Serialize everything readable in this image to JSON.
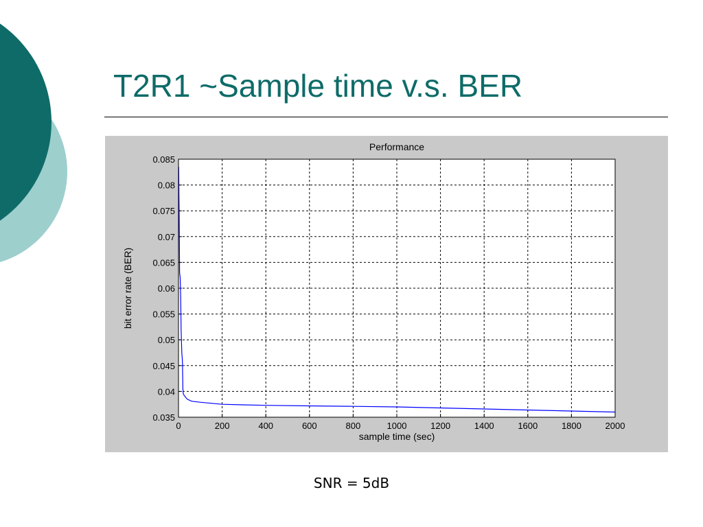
{
  "slide": {
    "title": "T2R1 ~Sample time v.s. BER",
    "caption": "SNR = 5dB"
  },
  "colors": {
    "title": "#0e6b68",
    "circle_dark": "#0e6b68",
    "circle_light": "#9dcfcd",
    "panel": "#c9c9c9",
    "line": "#0000ff"
  },
  "chart_data": {
    "type": "line",
    "title": "Performance",
    "xlabel": "sample time (sec)",
    "ylabel": "bit error rate (BER)",
    "xlim": [
      0,
      2000
    ],
    "ylim": [
      0.035,
      0.085
    ],
    "grid": true,
    "x_ticks": [
      "0",
      "200",
      "400",
      "600",
      "800",
      "1000",
      "1200",
      "1400",
      "1600",
      "1800",
      "2000"
    ],
    "y_ticks": [
      "0.035",
      "0.04",
      "0.045",
      "0.05",
      "0.055",
      "0.06",
      "0.065",
      "0.07",
      "0.075",
      "0.08",
      "0.085"
    ],
    "series": [
      {
        "x": [
          1,
          2,
          3,
          4,
          5,
          8,
          10,
          12,
          15,
          18,
          20,
          22,
          30,
          40,
          60,
          100,
          150,
          200,
          300,
          400,
          600,
          800,
          1000,
          1200,
          1400,
          1600,
          1800,
          2000
        ],
        "y": [
          0.0835,
          0.0785,
          0.074,
          0.069,
          0.063,
          0.062,
          0.058,
          0.052,
          0.0475,
          0.046,
          0.0405,
          0.0395,
          0.039,
          0.0385,
          0.0381,
          0.0379,
          0.0377,
          0.0375,
          0.0374,
          0.0373,
          0.0372,
          0.0371,
          0.037,
          0.0368,
          0.0366,
          0.0364,
          0.0362,
          0.036
        ]
      }
    ]
  }
}
